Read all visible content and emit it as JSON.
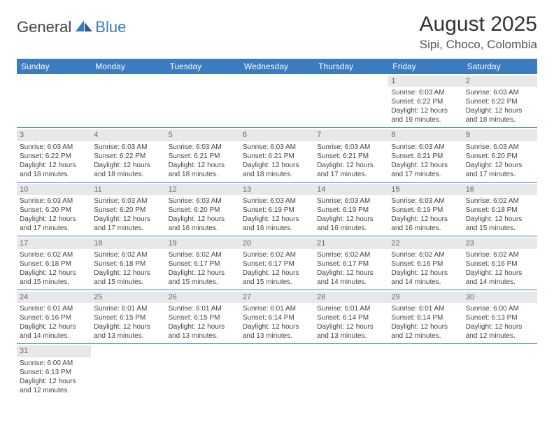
{
  "logo": {
    "text1": "General",
    "text2": "Blue"
  },
  "title": "August 2025",
  "location": "Sipi, Choco, Colombia",
  "colors": {
    "header_bg": "#3b7bbf",
    "header_text": "#ffffff",
    "daynum_bg": "#e8e8e8",
    "rule": "#3b7bbf",
    "text": "#444444"
  },
  "day_names": [
    "Sunday",
    "Monday",
    "Tuesday",
    "Wednesday",
    "Thursday",
    "Friday",
    "Saturday"
  ],
  "weeks": [
    [
      {
        "n": "",
        "sr": "",
        "ss": "",
        "d1": "",
        "d2": ""
      },
      {
        "n": "",
        "sr": "",
        "ss": "",
        "d1": "",
        "d2": ""
      },
      {
        "n": "",
        "sr": "",
        "ss": "",
        "d1": "",
        "d2": ""
      },
      {
        "n": "",
        "sr": "",
        "ss": "",
        "d1": "",
        "d2": ""
      },
      {
        "n": "",
        "sr": "",
        "ss": "",
        "d1": "",
        "d2": ""
      },
      {
        "n": "1",
        "sr": "Sunrise: 6:03 AM",
        "ss": "Sunset: 6:22 PM",
        "d1": "Daylight: 12 hours",
        "d2": "and 19 minutes."
      },
      {
        "n": "2",
        "sr": "Sunrise: 6:03 AM",
        "ss": "Sunset: 6:22 PM",
        "d1": "Daylight: 12 hours",
        "d2": "and 18 minutes."
      }
    ],
    [
      {
        "n": "3",
        "sr": "Sunrise: 6:03 AM",
        "ss": "Sunset: 6:22 PM",
        "d1": "Daylight: 12 hours",
        "d2": "and 18 minutes."
      },
      {
        "n": "4",
        "sr": "Sunrise: 6:03 AM",
        "ss": "Sunset: 6:22 PM",
        "d1": "Daylight: 12 hours",
        "d2": "and 18 minutes."
      },
      {
        "n": "5",
        "sr": "Sunrise: 6:03 AM",
        "ss": "Sunset: 6:21 PM",
        "d1": "Daylight: 12 hours",
        "d2": "and 18 minutes."
      },
      {
        "n": "6",
        "sr": "Sunrise: 6:03 AM",
        "ss": "Sunset: 6:21 PM",
        "d1": "Daylight: 12 hours",
        "d2": "and 18 minutes."
      },
      {
        "n": "7",
        "sr": "Sunrise: 6:03 AM",
        "ss": "Sunset: 6:21 PM",
        "d1": "Daylight: 12 hours",
        "d2": "and 17 minutes."
      },
      {
        "n": "8",
        "sr": "Sunrise: 6:03 AM",
        "ss": "Sunset: 6:21 PM",
        "d1": "Daylight: 12 hours",
        "d2": "and 17 minutes."
      },
      {
        "n": "9",
        "sr": "Sunrise: 6:03 AM",
        "ss": "Sunset: 6:20 PM",
        "d1": "Daylight: 12 hours",
        "d2": "and 17 minutes."
      }
    ],
    [
      {
        "n": "10",
        "sr": "Sunrise: 6:03 AM",
        "ss": "Sunset: 6:20 PM",
        "d1": "Daylight: 12 hours",
        "d2": "and 17 minutes."
      },
      {
        "n": "11",
        "sr": "Sunrise: 6:03 AM",
        "ss": "Sunset: 6:20 PM",
        "d1": "Daylight: 12 hours",
        "d2": "and 17 minutes."
      },
      {
        "n": "12",
        "sr": "Sunrise: 6:03 AM",
        "ss": "Sunset: 6:20 PM",
        "d1": "Daylight: 12 hours",
        "d2": "and 16 minutes."
      },
      {
        "n": "13",
        "sr": "Sunrise: 6:03 AM",
        "ss": "Sunset: 6:19 PM",
        "d1": "Daylight: 12 hours",
        "d2": "and 16 minutes."
      },
      {
        "n": "14",
        "sr": "Sunrise: 6:03 AM",
        "ss": "Sunset: 6:19 PM",
        "d1": "Daylight: 12 hours",
        "d2": "and 16 minutes."
      },
      {
        "n": "15",
        "sr": "Sunrise: 6:03 AM",
        "ss": "Sunset: 6:19 PM",
        "d1": "Daylight: 12 hours",
        "d2": "and 16 minutes."
      },
      {
        "n": "16",
        "sr": "Sunrise: 6:02 AM",
        "ss": "Sunset: 6:18 PM",
        "d1": "Daylight: 12 hours",
        "d2": "and 15 minutes."
      }
    ],
    [
      {
        "n": "17",
        "sr": "Sunrise: 6:02 AM",
        "ss": "Sunset: 6:18 PM",
        "d1": "Daylight: 12 hours",
        "d2": "and 15 minutes."
      },
      {
        "n": "18",
        "sr": "Sunrise: 6:02 AM",
        "ss": "Sunset: 6:18 PM",
        "d1": "Daylight: 12 hours",
        "d2": "and 15 minutes."
      },
      {
        "n": "19",
        "sr": "Sunrise: 6:02 AM",
        "ss": "Sunset: 6:17 PM",
        "d1": "Daylight: 12 hours",
        "d2": "and 15 minutes."
      },
      {
        "n": "20",
        "sr": "Sunrise: 6:02 AM",
        "ss": "Sunset: 6:17 PM",
        "d1": "Daylight: 12 hours",
        "d2": "and 15 minutes."
      },
      {
        "n": "21",
        "sr": "Sunrise: 6:02 AM",
        "ss": "Sunset: 6:17 PM",
        "d1": "Daylight: 12 hours",
        "d2": "and 14 minutes."
      },
      {
        "n": "22",
        "sr": "Sunrise: 6:02 AM",
        "ss": "Sunset: 6:16 PM",
        "d1": "Daylight: 12 hours",
        "d2": "and 14 minutes."
      },
      {
        "n": "23",
        "sr": "Sunrise: 6:02 AM",
        "ss": "Sunset: 6:16 PM",
        "d1": "Daylight: 12 hours",
        "d2": "and 14 minutes."
      }
    ],
    [
      {
        "n": "24",
        "sr": "Sunrise: 6:01 AM",
        "ss": "Sunset: 6:16 PM",
        "d1": "Daylight: 12 hours",
        "d2": "and 14 minutes."
      },
      {
        "n": "25",
        "sr": "Sunrise: 6:01 AM",
        "ss": "Sunset: 6:15 PM",
        "d1": "Daylight: 12 hours",
        "d2": "and 13 minutes."
      },
      {
        "n": "26",
        "sr": "Sunrise: 6:01 AM",
        "ss": "Sunset: 6:15 PM",
        "d1": "Daylight: 12 hours",
        "d2": "and 13 minutes."
      },
      {
        "n": "27",
        "sr": "Sunrise: 6:01 AM",
        "ss": "Sunset: 6:14 PM",
        "d1": "Daylight: 12 hours",
        "d2": "and 13 minutes."
      },
      {
        "n": "28",
        "sr": "Sunrise: 6:01 AM",
        "ss": "Sunset: 6:14 PM",
        "d1": "Daylight: 12 hours",
        "d2": "and 13 minutes."
      },
      {
        "n": "29",
        "sr": "Sunrise: 6:01 AM",
        "ss": "Sunset: 6:14 PM",
        "d1": "Daylight: 12 hours",
        "d2": "and 12 minutes."
      },
      {
        "n": "30",
        "sr": "Sunrise: 6:00 AM",
        "ss": "Sunset: 6:13 PM",
        "d1": "Daylight: 12 hours",
        "d2": "and 12 minutes."
      }
    ],
    [
      {
        "n": "31",
        "sr": "Sunrise: 6:00 AM",
        "ss": "Sunset: 6:13 PM",
        "d1": "Daylight: 12 hours",
        "d2": "and 12 minutes."
      },
      {
        "n": "",
        "sr": "",
        "ss": "",
        "d1": "",
        "d2": ""
      },
      {
        "n": "",
        "sr": "",
        "ss": "",
        "d1": "",
        "d2": ""
      },
      {
        "n": "",
        "sr": "",
        "ss": "",
        "d1": "",
        "d2": ""
      },
      {
        "n": "",
        "sr": "",
        "ss": "",
        "d1": "",
        "d2": ""
      },
      {
        "n": "",
        "sr": "",
        "ss": "",
        "d1": "",
        "d2": ""
      },
      {
        "n": "",
        "sr": "",
        "ss": "",
        "d1": "",
        "d2": ""
      }
    ]
  ]
}
